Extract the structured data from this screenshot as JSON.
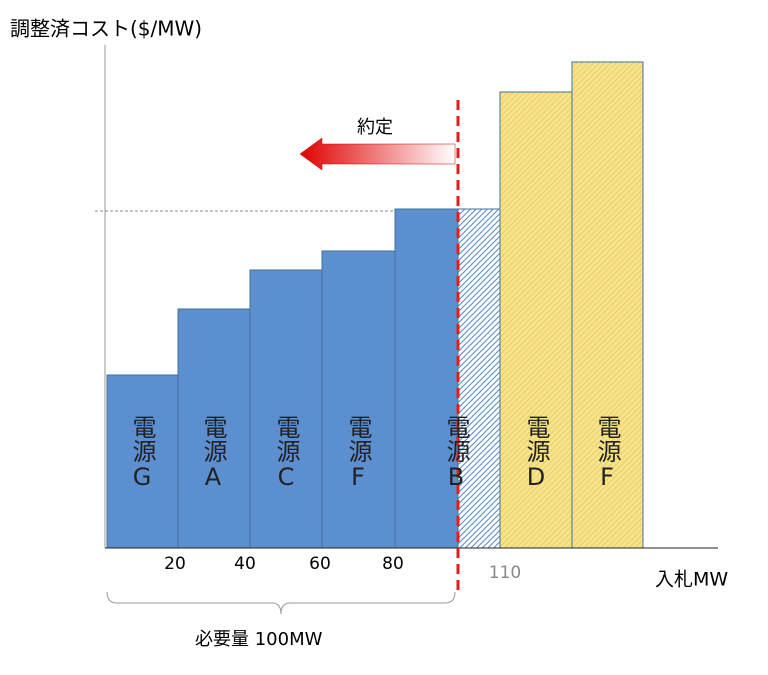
{
  "header": {
    "title": "調整済コスト($/MW)"
  },
  "x_axis_label": "入札MW",
  "ticks": [
    20,
    40,
    60,
    80,
    110
  ],
  "annotation": "約定",
  "requirement": "必要量 100MW",
  "sources": [
    "電源G",
    "電源A",
    "電源C",
    "電源F",
    "電源B",
    "電源D",
    "電源F"
  ]
}
